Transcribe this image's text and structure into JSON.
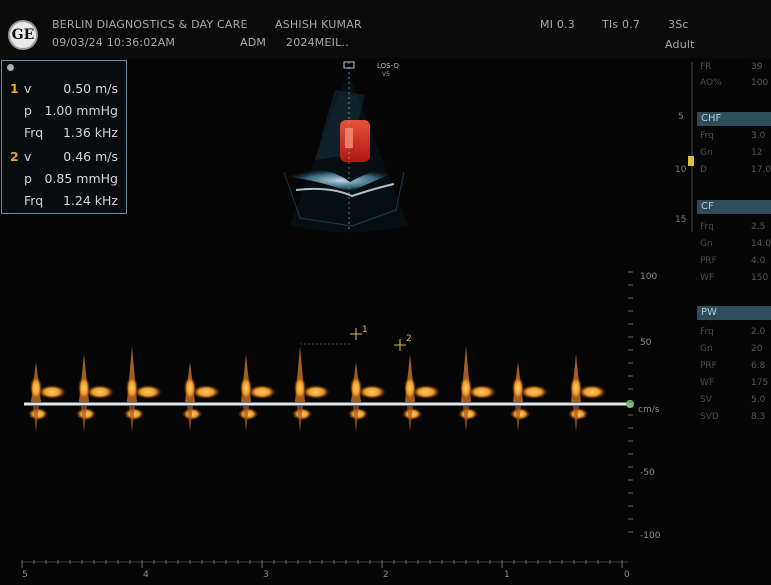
{
  "header": {
    "logo_text": "GE",
    "institution": "BERLIN DIAGNOSTICS & DAY CARE",
    "patient_name": "ASHISH KUMAR",
    "datetime": "09/03/24 10:36:02AM",
    "operator": "ADM",
    "patient_id": "2024MEIL..",
    "mi": "MI 0.3",
    "tis": "TIs 0.7",
    "probe": "3Sc",
    "preset": "Adult"
  },
  "measurements": {
    "entries": [
      {
        "num": "1",
        "v_label": "v",
        "v_value": "0.50 m/s",
        "p_label": "p",
        "p_value": "1.00 mmHg",
        "frq_label": "Frq",
        "frq_value": "1.36 kHz"
      },
      {
        "num": "2",
        "v_label": "v",
        "v_value": "0.46 m/s",
        "p_label": "p",
        "p_value": "0.85 mmHg",
        "frq_label": "Frq",
        "frq_value": "1.24 kHz"
      }
    ]
  },
  "image_header": {
    "line1": "LOS-Q",
    "line2": "V5"
  },
  "right_panel": {
    "top_params": [
      {
        "key": "FR",
        "value": "39"
      },
      {
        "key": "AO%",
        "value": "100"
      }
    ],
    "sections": [
      {
        "title": "CHF",
        "params": [
          {
            "key": "Frq",
            "value": "3.0"
          },
          {
            "key": "Gn",
            "value": "12"
          },
          {
            "key": "D",
            "value": "17.0"
          }
        ]
      },
      {
        "title": "CF",
        "params": [
          {
            "key": "Frq",
            "value": "2.5"
          },
          {
            "key": "Gn",
            "value": "14.0"
          },
          {
            "key": "PRF",
            "value": "4.0"
          },
          {
            "key": "WF",
            "value": "150"
          }
        ]
      },
      {
        "title": "PW",
        "params": [
          {
            "key": "Frq",
            "value": "2.0"
          },
          {
            "key": "Gn",
            "value": "20"
          },
          {
            "key": "PRF",
            "value": "6.8"
          },
          {
            "key": "WF",
            "value": "175"
          },
          {
            "key": "SV",
            "value": "5.0"
          },
          {
            "key": "SVD",
            "value": "8.3"
          }
        ]
      }
    ]
  },
  "doppler": {
    "velocity_unit": "cm/s",
    "velocity_labels": [
      "100",
      "50",
      "cm/s",
      "-50",
      "-100"
    ],
    "time_labels": [
      "5",
      "4",
      "3",
      "2",
      "1",
      "0"
    ],
    "cursor_labels": [
      "1",
      "2"
    ],
    "depth_marks": [
      "5",
      "10",
      "15"
    ]
  },
  "colors": {
    "doppler_orange": "#f0a030",
    "baseline": "#dfe6ea",
    "panel_header": "#2d4d5c",
    "marker_yellow": "#e0c040",
    "flow_red": "#e83020",
    "tissue_cyan": "#7ab8d0"
  }
}
